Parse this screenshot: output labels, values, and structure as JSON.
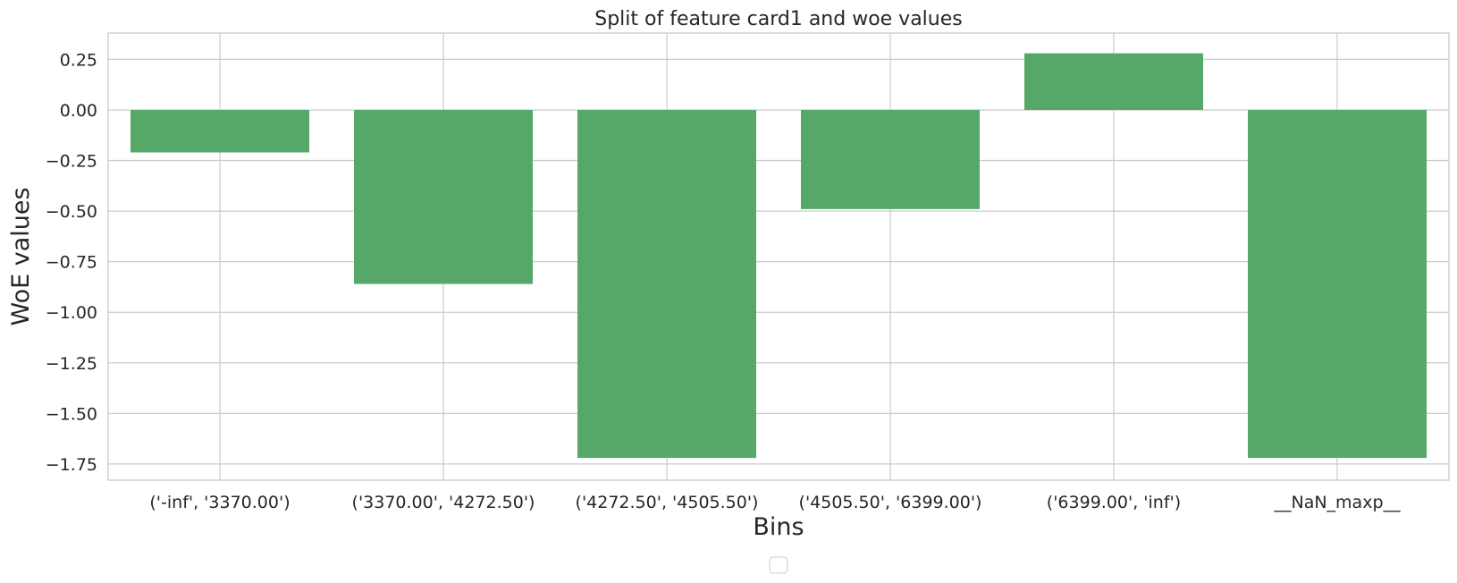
{
  "chart_data": {
    "type": "bar",
    "title": "Split of feature card1 and woe values",
    "xlabel": "Bins",
    "ylabel": "WoE values",
    "categories": [
      "('-inf', '3370.00')",
      "('3370.00', '4272.50')",
      "('4272.50', '4505.50')",
      "('4505.50', '6399.00')",
      "('6399.00', 'inf')",
      "__NaN_maxp__"
    ],
    "values": [
      -0.21,
      -0.86,
      -1.72,
      -0.49,
      0.28,
      -1.72
    ],
    "ylim": [
      -1.83,
      0.38
    ],
    "yticks": [
      0.25,
      0.0,
      -0.25,
      -0.5,
      -0.75,
      -1.0,
      -1.25,
      -1.5,
      -1.75
    ],
    "ytick_labels": [
      "0.25",
      "0.00",
      "−0.25",
      "−0.50",
      "−0.75",
      "−1.00",
      "−1.25",
      "−1.50",
      "−1.75"
    ],
    "grid": true,
    "legend": "bottom-center",
    "bar_color": "#55a868"
  }
}
